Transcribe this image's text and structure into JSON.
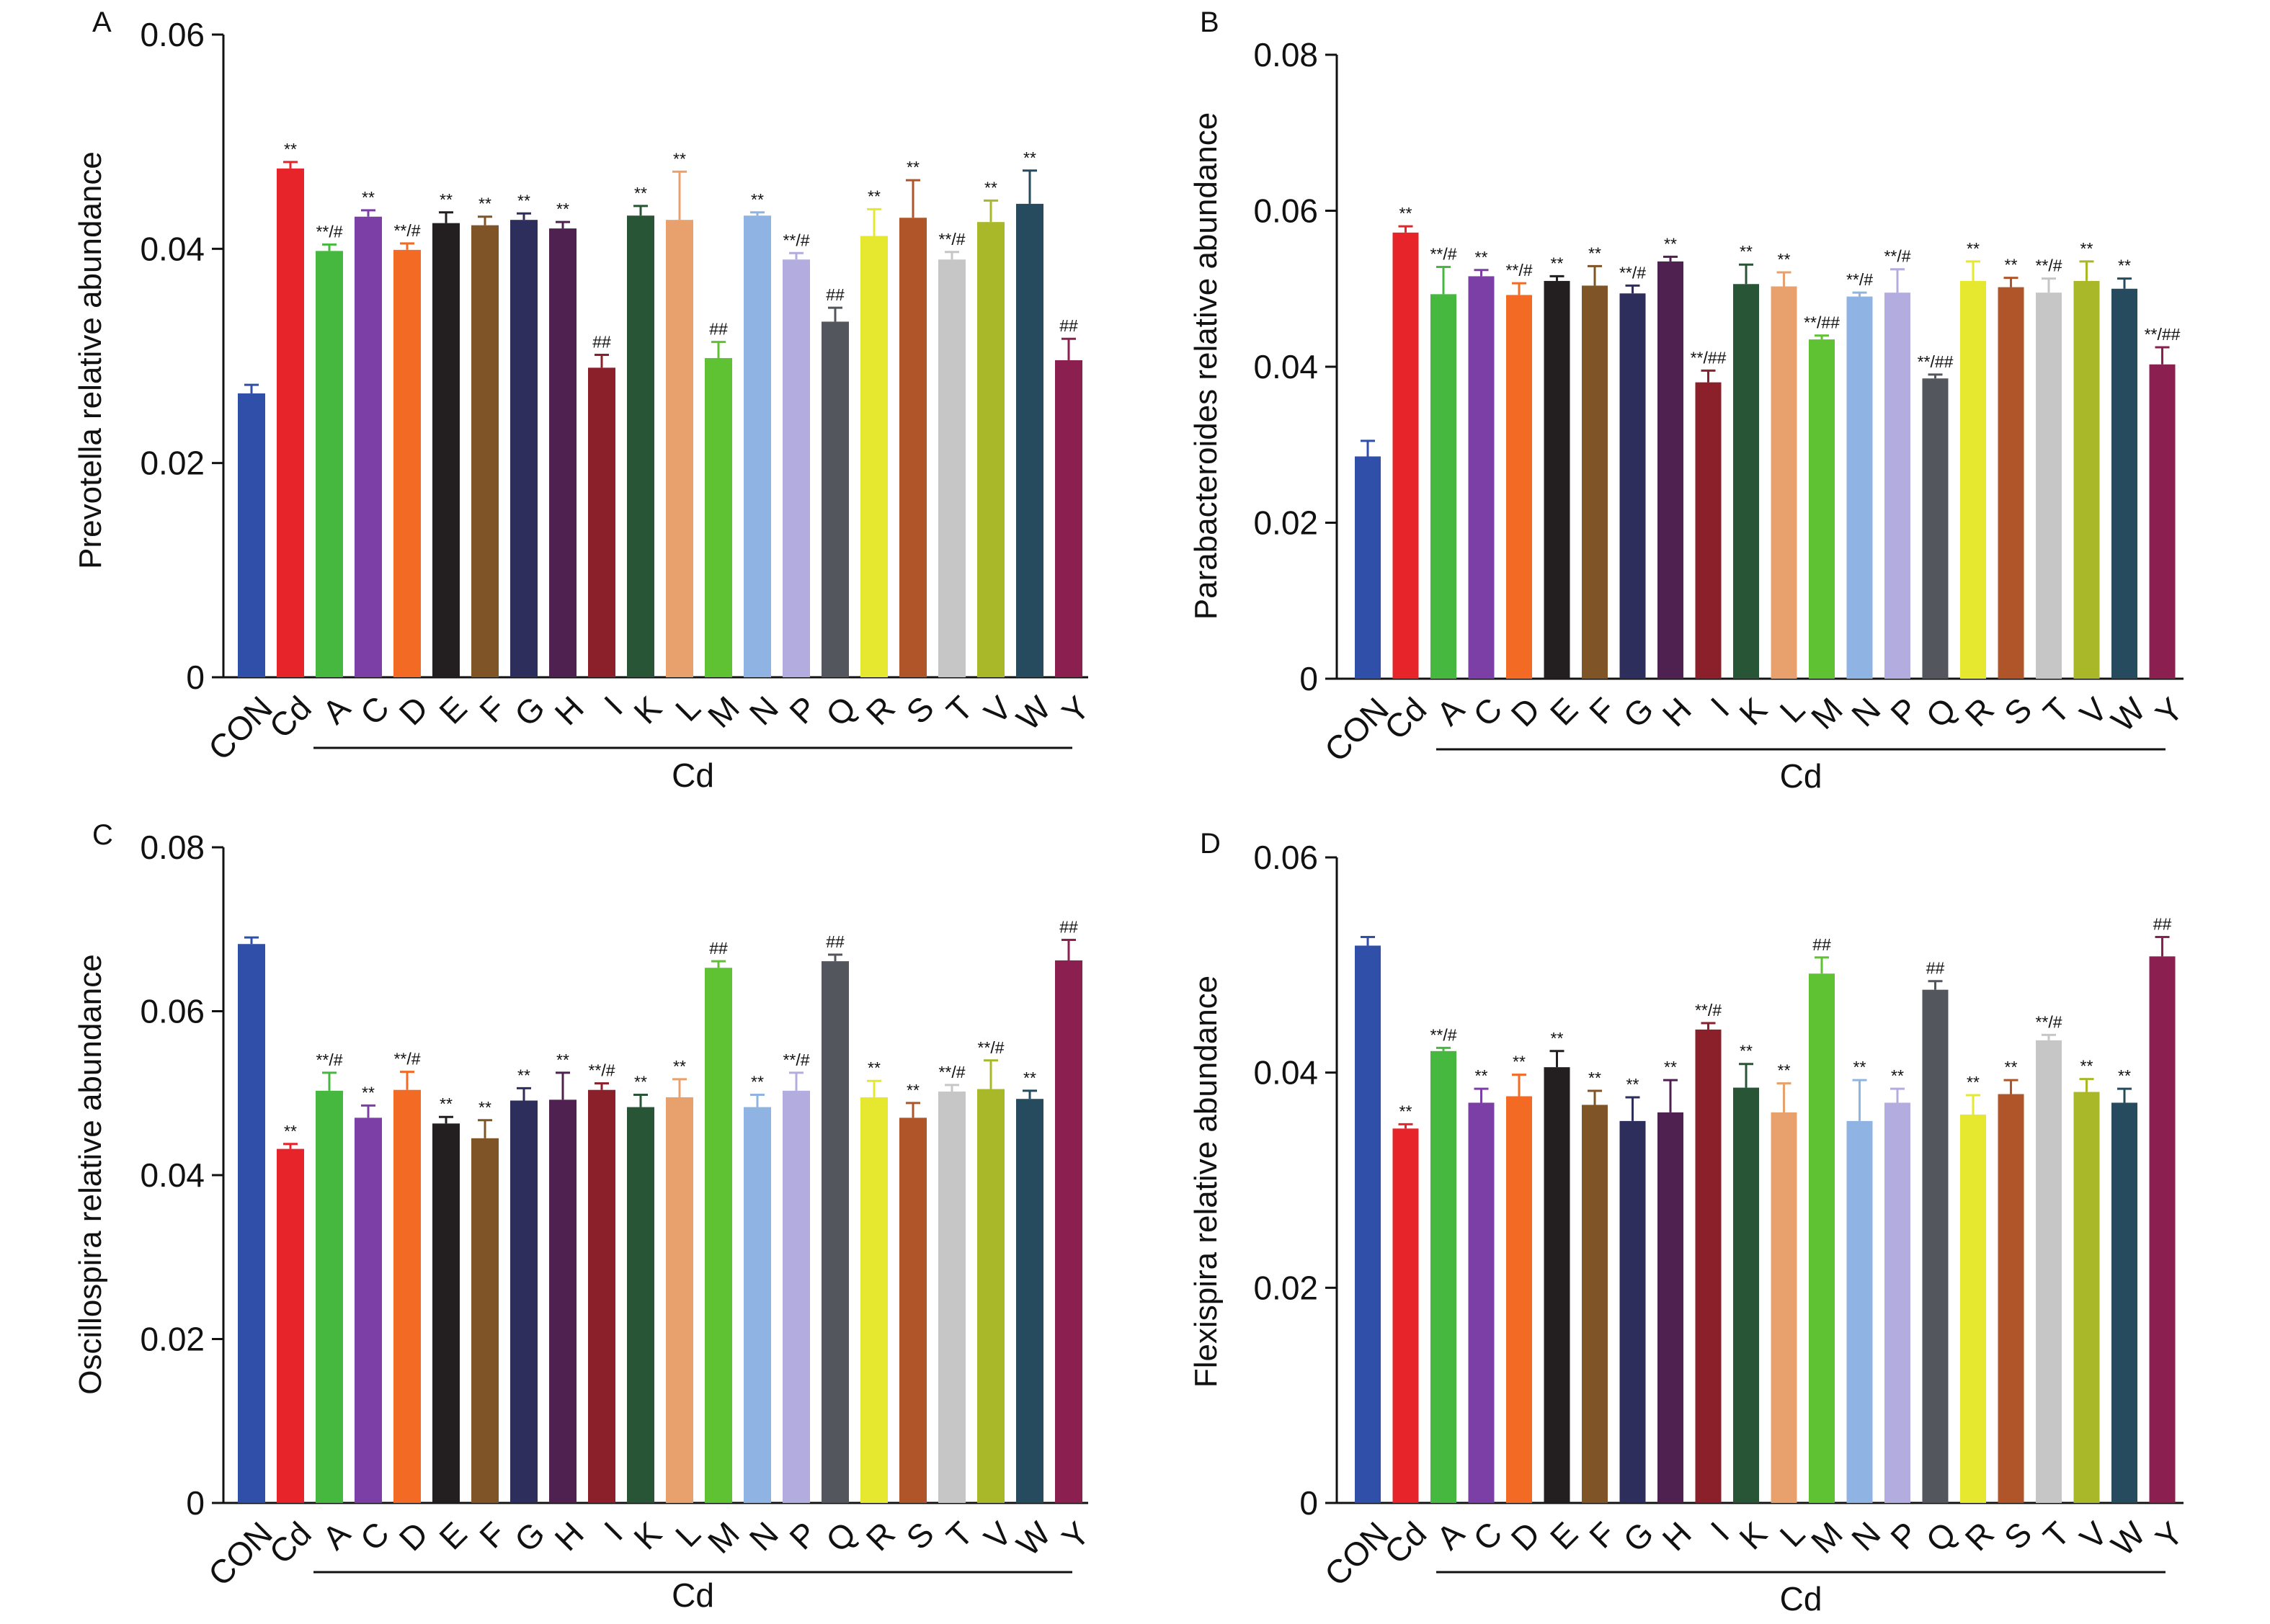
{
  "figure": {
    "categories": [
      "CON",
      "Cd",
      "A",
      "C",
      "D",
      "E",
      "F",
      "G",
      "H",
      "I",
      "K",
      "L",
      "M",
      "N",
      "P",
      "Q",
      "R",
      "S",
      "T",
      "V",
      "W",
      "Y"
    ],
    "group_label": "Cd",
    "bar_colors": [
      "#2f4fa8",
      "#e8242b",
      "#46b83f",
      "#7b3fa6",
      "#f26a23",
      "#231f20",
      "#7f5426",
      "#2e2e5c",
      "#4f2150",
      "#8b1f2a",
      "#285535",
      "#e8a06c",
      "#5fc232",
      "#8fb4e3",
      "#b3acde",
      "#54565d",
      "#e6e830",
      "#b05529",
      "#c6c6c6",
      "#a8b828",
      "#264b5e",
      "#8b2050"
    ]
  },
  "chart_data": [
    {
      "type": "bar",
      "panel": "A",
      "ylabel": "Prevotella relative abundance",
      "ylim": [
        0,
        0.06
      ],
      "yticks": [
        "0",
        "0.02",
        "0.04",
        "0.06"
      ],
      "categories": [
        "CON",
        "Cd",
        "A",
        "C",
        "D",
        "E",
        "F",
        "G",
        "H",
        "I",
        "K",
        "L",
        "M",
        "N",
        "P",
        "Q",
        "R",
        "S",
        "T",
        "V",
        "W",
        "Y"
      ],
      "values": [
        0.0265,
        0.0475,
        0.0398,
        0.043,
        0.0399,
        0.0424,
        0.0422,
        0.0427,
        0.0419,
        0.0289,
        0.0431,
        0.0427,
        0.0298,
        0.0431,
        0.039,
        0.0332,
        0.0412,
        0.0429,
        0.039,
        0.0425,
        0.0442,
        0.0296
      ],
      "errors": [
        0.0008,
        0.0006,
        0.0006,
        0.0006,
        0.0006,
        0.001,
        0.0008,
        0.0006,
        0.0006,
        0.0012,
        0.0009,
        0.0045,
        0.0015,
        0.0003,
        0.0006,
        0.0013,
        0.0025,
        0.0035,
        0.0007,
        0.002,
        0.0031,
        0.002
      ],
      "annotations": [
        "",
        "**",
        "**/#",
        "**",
        "**/#",
        "**",
        "**",
        "**",
        "**",
        "##",
        "**",
        "**",
        "##",
        "**",
        "**/#",
        "##",
        "**",
        "**",
        "**/#",
        "**",
        "**",
        "##"
      ]
    },
    {
      "type": "bar",
      "panel": "B",
      "ylabel": "Parabacteroides relative abundance",
      "ylim": [
        0,
        0.08
      ],
      "yticks": [
        "0",
        "0.02",
        "0.04",
        "0.06",
        "0.08"
      ],
      "categories": [
        "CON",
        "Cd",
        "A",
        "C",
        "D",
        "E",
        "F",
        "G",
        "H",
        "I",
        "K",
        "L",
        "M",
        "N",
        "P",
        "Q",
        "R",
        "S",
        "T",
        "V",
        "W",
        "Y"
      ],
      "values": [
        0.0285,
        0.0572,
        0.0493,
        0.0516,
        0.0492,
        0.051,
        0.0504,
        0.0494,
        0.0535,
        0.038,
        0.0506,
        0.0503,
        0.0435,
        0.049,
        0.0495,
        0.0385,
        0.051,
        0.0502,
        0.0495,
        0.051,
        0.05,
        0.0403
      ],
      "errors": [
        0.002,
        0.0008,
        0.0035,
        0.0008,
        0.0015,
        0.0006,
        0.0025,
        0.001,
        0.0006,
        0.0015,
        0.0025,
        0.0018,
        0.0005,
        0.0005,
        0.003,
        0.0005,
        0.0025,
        0.0012,
        0.0018,
        0.0025,
        0.0013,
        0.0022
      ],
      "annotations": [
        "",
        "**",
        "**/#",
        "**",
        "**/#",
        "**",
        "**",
        "**/#",
        "**",
        "**/##",
        "**",
        "**",
        "**/##",
        "**/#",
        "**/#",
        "**/##",
        "**",
        "**",
        "**/#",
        "**",
        "**",
        "**/##"
      ]
    },
    {
      "type": "bar",
      "panel": "C",
      "ylabel": "Oscillospira relative abundance",
      "ylim": [
        0,
        0.08
      ],
      "yticks": [
        "0",
        "0.02",
        "0.04",
        "0.06",
        "0.08"
      ],
      "categories": [
        "CON",
        "Cd",
        "A",
        "C",
        "D",
        "E",
        "F",
        "G",
        "H",
        "I",
        "K",
        "L",
        "M",
        "N",
        "P",
        "Q",
        "R",
        "S",
        "T",
        "V",
        "W",
        "Y"
      ],
      "values": [
        0.0682,
        0.0432,
        0.0503,
        0.047,
        0.0504,
        0.0463,
        0.0445,
        0.0491,
        0.0492,
        0.0504,
        0.0483,
        0.0495,
        0.0653,
        0.0483,
        0.0503,
        0.0661,
        0.0495,
        0.047,
        0.0502,
        0.0505,
        0.0493,
        0.0662
      ],
      "errors": [
        0.0008,
        0.0006,
        0.0022,
        0.0015,
        0.0022,
        0.0008,
        0.0022,
        0.0015,
        0.0033,
        0.0008,
        0.0015,
        0.0022,
        0.0008,
        0.0015,
        0.0022,
        0.0008,
        0.002,
        0.0018,
        0.0008,
        0.0035,
        0.001,
        0.0025
      ],
      "annotations": [
        "",
        "**",
        "**/#",
        "**",
        "**/#",
        "**",
        "**",
        "**",
        "**",
        "**/#",
        "**",
        "**",
        "##",
        "**",
        "**/#",
        "##",
        "**",
        "**",
        "**/#",
        "**/#",
        "**",
        "##"
      ]
    },
    {
      "type": "bar",
      "panel": "D",
      "ylabel": "Flexispira relative abundance",
      "ylim": [
        0,
        0.06
      ],
      "yticks": [
        "0",
        "0.02",
        "0.04",
        "0.06"
      ],
      "categories": [
        "CON",
        "Cd",
        "A",
        "C",
        "D",
        "E",
        "F",
        "G",
        "H",
        "I",
        "K",
        "L",
        "M",
        "N",
        "P",
        "Q",
        "R",
        "S",
        "T",
        "V",
        "W",
        "Y"
      ],
      "values": [
        0.0518,
        0.0348,
        0.042,
        0.0372,
        0.0378,
        0.0405,
        0.037,
        0.0355,
        0.0363,
        0.044,
        0.0386,
        0.0363,
        0.0492,
        0.0355,
        0.0372,
        0.0477,
        0.0361,
        0.038,
        0.043,
        0.0382,
        0.0372,
        0.0508
      ],
      "errors": [
        0.0008,
        0.0004,
        0.0003,
        0.0013,
        0.002,
        0.0015,
        0.0013,
        0.0022,
        0.003,
        0.0006,
        0.0022,
        0.0027,
        0.0015,
        0.0038,
        0.0013,
        0.0008,
        0.0018,
        0.0013,
        0.0005,
        0.0012,
        0.0013,
        0.0018
      ],
      "annotations": [
        "",
        "**",
        "**/#",
        "**",
        "**",
        "**",
        "**",
        "**",
        "**",
        "**/#",
        "**",
        "**",
        "##",
        "**",
        "**",
        "##",
        "**",
        "**",
        "**/#",
        "**",
        "**",
        "##"
      ]
    }
  ]
}
